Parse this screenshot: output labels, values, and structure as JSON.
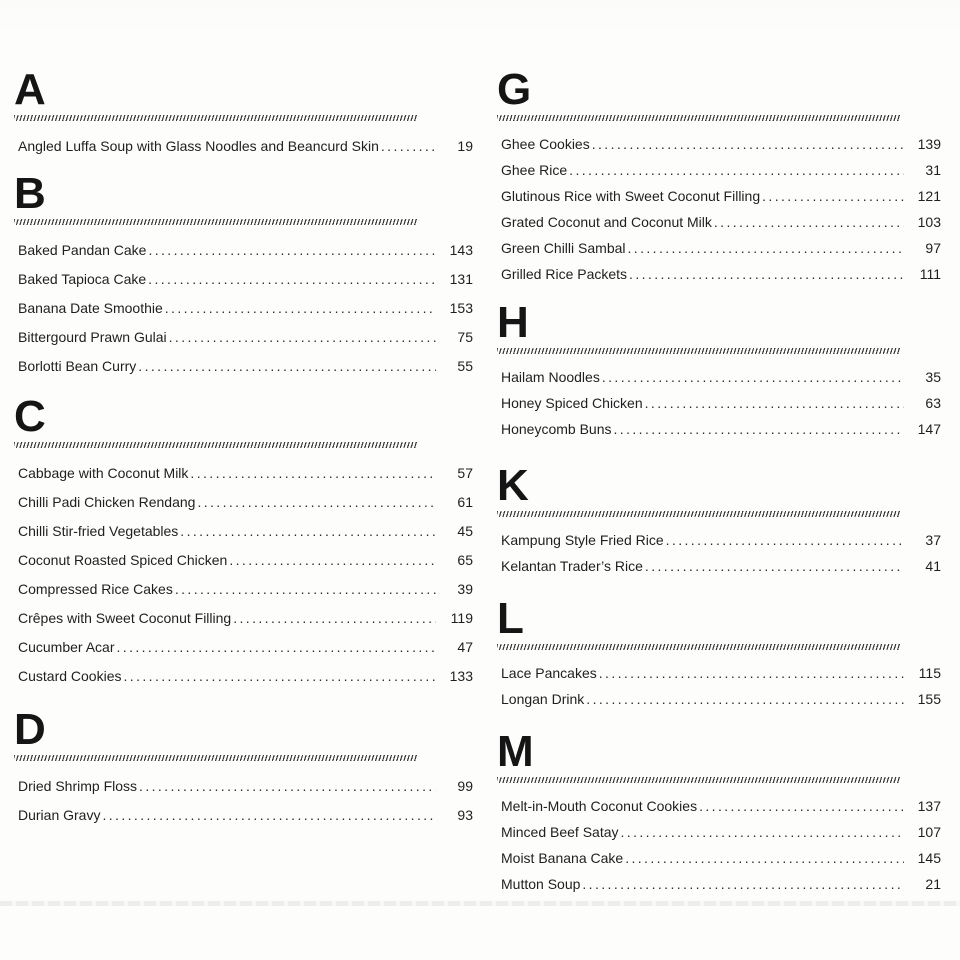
{
  "page": {
    "type": "cookbook-index",
    "text_color": "#1f1f1f",
    "background_color": "#fdfdfc",
    "divider_color": "#3b3b3b"
  },
  "index": {
    "columns": [
      {
        "side": "left",
        "sections": [
          {
            "letter": "A",
            "entries": [
              {
                "title": "Angled Luffa Soup with Glass Noodles and Beancurd Skin",
                "page": "19"
              }
            ]
          },
          {
            "letter": "B",
            "entries": [
              {
                "title": "Baked Pandan Cake",
                "page": "143"
              },
              {
                "title": "Baked Tapioca Cake",
                "page": "131"
              },
              {
                "title": "Banana Date Smoothie",
                "page": "153"
              },
              {
                "title": "Bittergourd Prawn Gulai",
                "page": "75"
              },
              {
                "title": "Borlotti Bean Curry",
                "page": "55"
              }
            ]
          },
          {
            "letter": "C",
            "entries": [
              {
                "title": "Cabbage with Coconut Milk",
                "page": "57"
              },
              {
                "title": "Chilli Padi Chicken Rendang",
                "page": "61"
              },
              {
                "title": "Chilli Stir-fried Vegetables",
                "page": "45"
              },
              {
                "title": "Coconut Roasted Spiced Chicken",
                "page": "65"
              },
              {
                "title": "Compressed Rice Cakes",
                "page": "39"
              },
              {
                "title": "Crêpes with Sweet Coconut Filling",
                "page": "119"
              },
              {
                "title": "Cucumber Acar",
                "page": "47"
              },
              {
                "title": "Custard Cookies",
                "page": "133"
              }
            ]
          },
          {
            "letter": "D",
            "entries": [
              {
                "title": "Dried Shrimp Floss",
                "page": "99"
              },
              {
                "title": "Durian Gravy",
                "page": "93"
              }
            ]
          }
        ]
      },
      {
        "side": "right",
        "sections": [
          {
            "letter": "G",
            "entries": [
              {
                "title": "Ghee Cookies",
                "page": "139"
              },
              {
                "title": "Ghee Rice",
                "page": "31"
              },
              {
                "title": "Glutinous Rice with Sweet Coconut Filling",
                "page": "121"
              },
              {
                "title": "Grated Coconut and Coconut Milk",
                "page": "103"
              },
              {
                "title": "Green Chilli Sambal",
                "page": "97"
              },
              {
                "title": "Grilled Rice Packets",
                "page": "111"
              }
            ]
          },
          {
            "letter": "H",
            "entries": [
              {
                "title": "Hailam Noodles",
                "page": "35"
              },
              {
                "title": "Honey Spiced Chicken",
                "page": "63"
              },
              {
                "title": "Honeycomb Buns",
                "page": "147"
              }
            ]
          },
          {
            "letter": "K",
            "entries": [
              {
                "title": "Kampung Style Fried Rice",
                "page": "37"
              },
              {
                "title": "Kelantan Trader’s Rice",
                "page": "41"
              }
            ]
          },
          {
            "letter": "L",
            "entries": [
              {
                "title": "Lace Pancakes",
                "page": "115"
              },
              {
                "title": "Longan Drink",
                "page": "155"
              }
            ]
          },
          {
            "letter": "M",
            "entries": [
              {
                "title": "Melt-in-Mouth Coconut Cookies",
                "page": "137"
              },
              {
                "title": "Minced Beef Satay",
                "page": "107"
              },
              {
                "title": "Moist Banana Cake",
                "page": "145"
              },
              {
                "title": "Mutton Soup",
                "page": "21"
              }
            ]
          }
        ]
      }
    ]
  }
}
